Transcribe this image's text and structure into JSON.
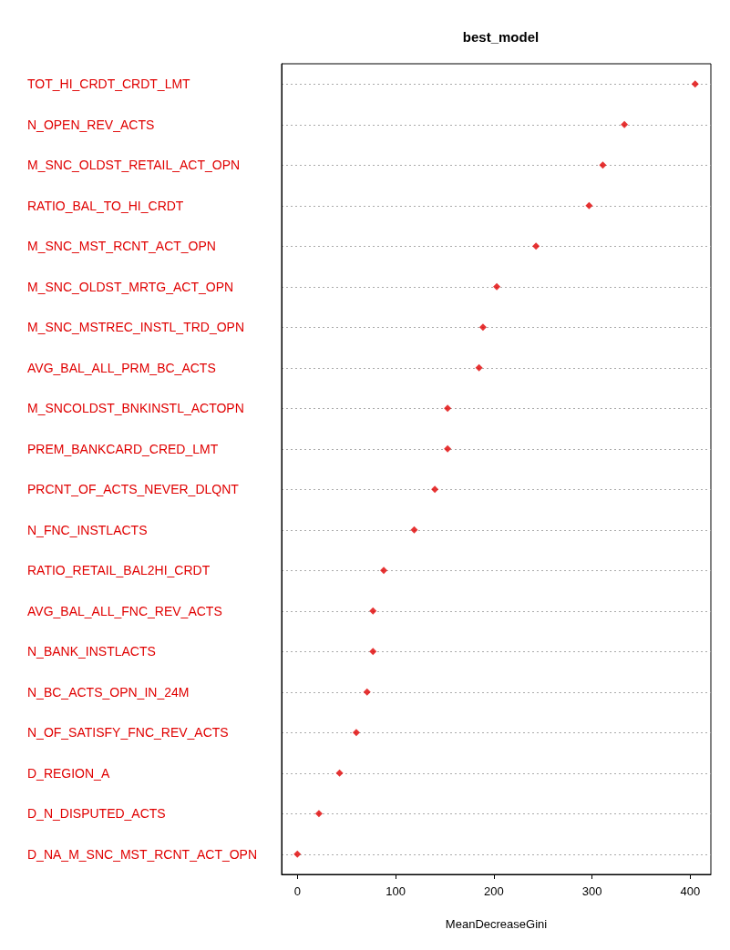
{
  "chart_data": {
    "type": "scatter",
    "title": "best_model",
    "xlabel": "MeanDecreaseGini",
    "orientation": "horizontal",
    "categories": [
      "TOT_HI_CRDT_CRDT_LMT",
      "N_OPEN_REV_ACTS",
      "M_SNC_OLDST_RETAIL_ACT_OPN",
      "RATIO_BAL_TO_HI_CRDT",
      "M_SNC_MST_RCNT_ACT_OPN",
      "M_SNC_OLDST_MRTG_ACT_OPN",
      "M_SNC_MSTREC_INSTL_TRD_OPN",
      "AVG_BAL_ALL_PRM_BC_ACTS",
      "M_SNCOLDST_BNKINSTL_ACTOPN",
      "PREM_BANKCARD_CRED_LMT",
      "PRCNT_OF_ACTS_NEVER_DLQNT",
      "N_FNC_INSTLACTS",
      "RATIO_RETAIL_BAL2HI_CRDT",
      "AVG_BAL_ALL_FNC_REV_ACTS",
      "N_BANK_INSTLACTS",
      "N_BC_ACTS_OPN_IN_24M",
      "N_OF_SATISFY_FNC_REV_ACTS",
      "D_REGION_A",
      "D_N_DISPUTED_ACTS",
      "D_NA_M_SNC_MST_RCNT_ACT_OPN"
    ],
    "series": [
      {
        "color": "#e00000",
        "values": [
          405,
          333,
          311,
          297,
          243,
          203,
          189,
          185,
          153,
          153,
          140,
          119,
          88,
          77,
          77,
          71,
          60,
          43,
          22,
          0
        ]
      }
    ],
    "xlim": [
      -16,
      421
    ],
    "xticks": [
      0,
      100,
      200,
      300,
      400
    ],
    "grid": "y",
    "marker": "diamond"
  }
}
